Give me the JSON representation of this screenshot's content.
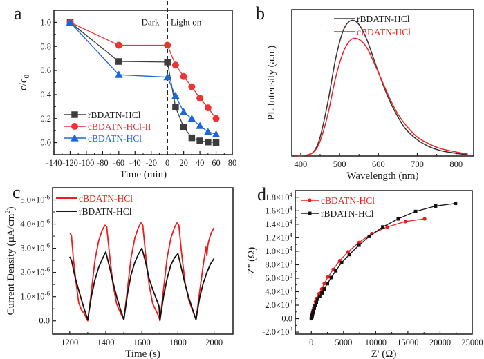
{
  "figure": {
    "panels": [
      "a",
      "b",
      "c",
      "d"
    ]
  },
  "chart_data": [
    {
      "panel": "a",
      "type": "line",
      "title": "",
      "xlabel": "Time (min)",
      "ylabel": "c/c0",
      "ylabel_main": "c/c",
      "ylabel_sub": "0",
      "xlim": [
        -140,
        80
      ],
      "ylim": [
        -0.1,
        1.1
      ],
      "xticks": [
        -140,
        -120,
        -100,
        -80,
        -60,
        -40,
        -20,
        0,
        20,
        40,
        60,
        80
      ],
      "yticks": [
        0.0,
        0.2,
        0.4,
        0.6,
        0.8,
        1.0
      ],
      "ytick_labels": [
        "0.0",
        "0.2",
        "0.4",
        "0.6",
        "0.8",
        "1.0"
      ],
      "legend_position": "bottom-left",
      "annotations": [
        {
          "text": "Dark",
          "x": -10,
          "y": 1.0,
          "align": "right"
        },
        {
          "text": "Light on",
          "x": 4,
          "y": 1.0,
          "align": "left"
        }
      ],
      "vline": {
        "x": 0,
        "style": "dashed"
      },
      "series": [
        {
          "name": "rBDATN-HCl",
          "color": "#3c3c3c",
          "marker": "square",
          "x": [
            -120,
            -60,
            0,
            10,
            20,
            30,
            40,
            50,
            60
          ],
          "y": [
            1.0,
            0.675,
            0.67,
            0.295,
            0.13,
            0.04,
            0.015,
            0.005,
            0.002
          ]
        },
        {
          "name": "cBDATN-HCl-II",
          "color": "#ee3333",
          "marker": "circle",
          "x": [
            -120,
            -60,
            0,
            10,
            20,
            30,
            40,
            50,
            60
          ],
          "y": [
            1.0,
            0.81,
            0.81,
            0.645,
            0.55,
            0.465,
            0.37,
            0.29,
            0.2
          ]
        },
        {
          "name": "cBDATN-HCl",
          "color": "#1a66dd",
          "marker": "triangle",
          "x": [
            -120,
            -60,
            0,
            10,
            20,
            30,
            40,
            50,
            60
          ],
          "y": [
            1.0,
            0.565,
            0.545,
            0.39,
            0.255,
            0.2,
            0.14,
            0.09,
            0.07
          ]
        }
      ]
    },
    {
      "panel": "b",
      "type": "line",
      "title": "",
      "xlabel": "Wavelength (nm)",
      "ylabel": "PL Intensity (a.u.)",
      "xlim": [
        377,
        845
      ],
      "ylim": [
        0,
        1.08
      ],
      "xticks": [
        400,
        500,
        600,
        700,
        800
      ],
      "yticks": [],
      "legend_position": "top-center",
      "series": [
        {
          "name": "rBDATN-HCl",
          "color": "#333333",
          "x": [
            390,
            420,
            435,
            450,
            470,
            490,
            510,
            530,
            550,
            570,
            590,
            610,
            630,
            650,
            670,
            700,
            730,
            760,
            800,
            830
          ],
          "y": [
            0.0,
            0.01,
            0.04,
            0.14,
            0.4,
            0.72,
            0.93,
            1.0,
            0.97,
            0.86,
            0.7,
            0.54,
            0.4,
            0.29,
            0.2,
            0.12,
            0.07,
            0.04,
            0.02,
            0.01
          ]
        },
        {
          "name": "cBDATN-HCl",
          "color": "#ee2222",
          "x": [
            390,
            420,
            435,
            450,
            470,
            490,
            510,
            530,
            550,
            570,
            590,
            610,
            630,
            650,
            670,
            700,
            730,
            760,
            800,
            830
          ],
          "y": [
            0.0,
            0.01,
            0.035,
            0.11,
            0.31,
            0.58,
            0.77,
            0.86,
            0.86,
            0.8,
            0.68,
            0.55,
            0.42,
            0.31,
            0.23,
            0.14,
            0.09,
            0.055,
            0.03,
            0.015
          ]
        }
      ]
    },
    {
      "panel": "c",
      "type": "line",
      "title": "",
      "xlabel": "Time (s)",
      "ylabel": "Current Density (µA/cm²)",
      "ylabel_main": "Current Density (µA/cm",
      "ylabel_sup": "2",
      "ylabel_end": ")",
      "xlim": [
        1105,
        2105
      ],
      "ylim": [
        -5.5e-07,
        5.5e-06
      ],
      "xticks": [
        1200,
        1400,
        1600,
        1800,
        2000
      ],
      "yticks": [
        0,
        1e-06,
        2e-06,
        3e-06,
        4e-06,
        5e-06
      ],
      "ytick_labels": [
        "0.0",
        "1.0×10",
        "2.0×10",
        "3.0×10",
        "4.0×10",
        "5.0×10"
      ],
      "ytick_exp": [
        "",
        "-6",
        "-6",
        "-6",
        "-6",
        "-6"
      ],
      "legend_position": "top-left",
      "series": [
        {
          "name": "cBDATN-HCl",
          "color": "#ee1c1c",
          "x": [
            1200,
            1205,
            1210,
            1220,
            1235,
            1250,
            1265,
            1280,
            1300,
            1320,
            1340,
            1360,
            1380,
            1395,
            1405,
            1420,
            1440,
            1460,
            1480,
            1500,
            1520,
            1540,
            1560,
            1580,
            1595,
            1605,
            1620,
            1640,
            1660,
            1680,
            1695,
            1700,
            1720,
            1740,
            1760,
            1780,
            1795,
            1805,
            1820,
            1840,
            1860,
            1880,
            1900,
            1920,
            1940,
            1955,
            1960,
            1965,
            1970,
            1985,
            2000
          ],
          "y": [
            3.6e-06,
            3.6e-06,
            3.5e-06,
            2.6e-06,
            1.6e-06,
            7.5e-07,
            4.5e-07,
            3e-07,
            0.0,
            1.2e-06,
            2.5e-06,
            3.3e-06,
            3.75e-06,
            3.95e-06,
            3.9e-06,
            2.8e-06,
            1.5e-06,
            7e-07,
            3.5e-07,
            5e-08,
            1.3e-06,
            2.6e-06,
            3.4e-06,
            3.85e-06,
            4.05e-06,
            3.95e-06,
            2.8e-06,
            1.5e-06,
            7e-07,
            4e-07,
            1.5e-07,
            0.0,
            1.3e-06,
            2.6e-06,
            3.4e-06,
            3.85e-06,
            4.05e-06,
            3.95e-06,
            2.8e-06,
            1.55e-06,
            8.5e-07,
            4.5e-07,
            5e-08,
            1.2e-06,
            2.3e-06,
            3.05e-06,
            2.7e-06,
            3.1e-06,
            3.3e-06,
            3.65e-06,
            3.85e-06
          ]
        },
        {
          "name": "rBDATN-HCl",
          "color": "#111111",
          "x": [
            1200,
            1210,
            1230,
            1260,
            1280,
            1300,
            1320,
            1340,
            1360,
            1380,
            1400,
            1420,
            1440,
            1460,
            1480,
            1500,
            1520,
            1540,
            1560,
            1580,
            1600,
            1620,
            1640,
            1660,
            1680,
            1695,
            1700,
            1720,
            1740,
            1760,
            1780,
            1800,
            1820,
            1840,
            1860,
            1880,
            1900,
            1920,
            1940,
            1960,
            1980,
            2000
          ],
          "y": [
            2.65e-06,
            2.5e-06,
            1.8e-06,
            1e-06,
            5e-07,
            5e-08,
            1e-06,
            1.7e-06,
            2.2e-06,
            2.55e-06,
            2.85e-06,
            2.25e-06,
            1.6e-06,
            1e-06,
            5e-07,
            5e-08,
            1.1e-06,
            1.9e-06,
            2.4e-06,
            2.75e-06,
            3e-06,
            2.45e-06,
            1.75e-06,
            1.3e-06,
            9e-07,
            6e-07,
            2e-08,
            1e-06,
            1.75e-06,
            2.3e-06,
            2.6e-06,
            2.78e-06,
            2.15e-06,
            1.5e-06,
            9.5e-07,
            5e-07,
            5e-08,
            9.5e-07,
            1.55e-06,
            2e-06,
            2.35e-06,
            2.58e-06
          ]
        }
      ]
    },
    {
      "panel": "d",
      "type": "scatter",
      "title": "",
      "xlabel": "Z' (Ω)",
      "ylabel": "-Z'' (Ω)",
      "xlim": [
        -2500,
        25000
      ],
      "ylim": [
        -2300,
        19000
      ],
      "xticks": [
        0,
        5000,
        10000,
        15000,
        20000,
        25000
      ],
      "xtick_labels": [
        "0",
        "5000",
        "10000",
        "15000",
        "20000",
        "25000"
      ],
      "yticks": [
        -2000,
        0,
        2000,
        4000,
        6000,
        8000,
        10000,
        12000,
        14000,
        16000,
        18000
      ],
      "ytick_labels": [
        "-2.0×10",
        "0.0",
        "2.0×10",
        "4.0×10",
        "6.0×10",
        "8.0×10",
        "1.0×10",
        "1.2×10",
        "1.4×10",
        "1.6×10",
        "1.8×10"
      ],
      "ytick_exp": [
        "3",
        "",
        "3",
        "3",
        "3",
        "3",
        "4",
        "4",
        "4",
        "4",
        "4"
      ],
      "legend_position": "top-left",
      "series": [
        {
          "name": "cBDATN-HCl",
          "color": "#ee1c1c",
          "marker": "circle",
          "x": [
            0,
            50,
            100,
            150,
            200,
            280,
            380,
            500,
            650,
            850,
            1200,
            1600,
            2000,
            2600,
            3400,
            4400,
            5700,
            7400,
            9400,
            11800,
            14600,
            17600
          ],
          "y": [
            0,
            200,
            450,
            700,
            950,
            1250,
            1600,
            2000,
            2500,
            3000,
            3700,
            4400,
            5200,
            6200,
            7300,
            8600,
            9900,
            11300,
            12600,
            13600,
            14400,
            14800
          ]
        },
        {
          "name": "rBDATN-HCl",
          "color": "#111111",
          "marker": "square",
          "x": [
            0,
            60,
            120,
            180,
            260,
            350,
            460,
            600,
            780,
            1000,
            1300,
            1650,
            2000,
            2500,
            3100,
            3800,
            4700,
            5900,
            7400,
            9000,
            11100,
            13500,
            16200,
            19300,
            22400
          ],
          "y": [
            0,
            200,
            400,
            650,
            900,
            1200,
            1550,
            1950,
            2400,
            2900,
            3300,
            3800,
            4400,
            5200,
            6100,
            7100,
            8300,
            9500,
            10900,
            12200,
            13600,
            14800,
            15900,
            16700,
            17100
          ]
        }
      ]
    }
  ]
}
